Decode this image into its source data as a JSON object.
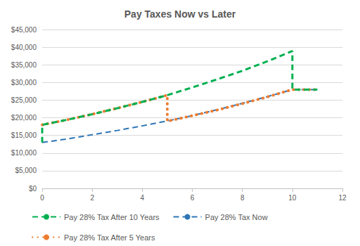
{
  "chart_data": {
    "type": "line",
    "title": "Pay Taxes Now vs Later",
    "xlim": [
      0,
      12
    ],
    "xticks": [
      0,
      2,
      4,
      6,
      8,
      10,
      12
    ],
    "ylim": [
      0,
      45000
    ],
    "yticks": [
      {
        "value": 0,
        "label": "$0"
      },
      {
        "value": 5000,
        "label": "$5,000"
      },
      {
        "value": 10000,
        "label": "$10,000"
      },
      {
        "value": 15000,
        "label": "$15,000"
      },
      {
        "value": 20000,
        "label": "$20,000"
      },
      {
        "value": 25000,
        "label": "$25,000"
      },
      {
        "value": 30000,
        "label": "$30,000"
      },
      {
        "value": 35000,
        "label": "$35,000"
      },
      {
        "value": 40000,
        "label": "$40,000"
      },
      {
        "value": 45000,
        "label": "$45,000"
      }
    ],
    "grid": true,
    "legend": "bottom",
    "series": [
      {
        "name": "Pay 28% Tax After 10 Years",
        "color": "#00b050",
        "line_style": "dashed",
        "x": [
          0,
          0,
          1,
          2,
          3,
          4,
          5,
          6,
          7,
          8,
          9,
          10,
          10,
          11
        ],
        "values": [
          13000,
          18000,
          19440,
          21000,
          22700,
          24500,
          26400,
          28600,
          30900,
          33300,
          36000,
          38900,
          28000,
          28000
        ]
      },
      {
        "name": "Pay 28% Tax Now",
        "color": "#2e75b6",
        "line_style": "dashed",
        "x": [
          0,
          1,
          2,
          3,
          4,
          5,
          6,
          7,
          8,
          9,
          10,
          11
        ],
        "values": [
          13000,
          14000,
          15200,
          16400,
          17700,
          19100,
          20600,
          22300,
          24100,
          26000,
          28000,
          28000
        ]
      },
      {
        "name": "Pay 28% Tax After 5 Years",
        "color": "#ed7d31",
        "line_style": "dotted",
        "x": [
          0,
          1,
          2,
          3,
          4,
          5,
          5,
          6,
          7,
          8,
          9,
          10,
          11
        ],
        "values": [
          18000,
          19440,
          21000,
          22700,
          24500,
          26400,
          19000,
          20600,
          22200,
          24000,
          25900,
          28000,
          28000
        ]
      }
    ]
  }
}
